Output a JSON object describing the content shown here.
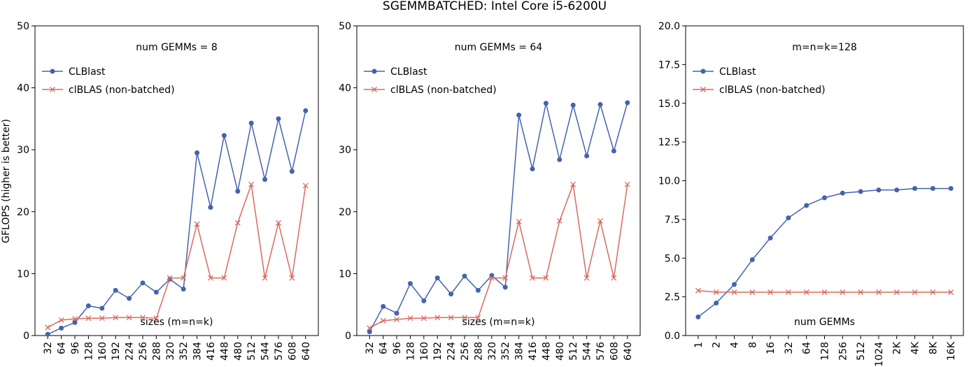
{
  "figure": {
    "title": "SGEMMBATCHED: Intel Core i5-6200U",
    "ylabel": "GFLOPS (higher is better)"
  },
  "colors": {
    "clblast": "#4463ad",
    "clblas": "#d9695f"
  },
  "chart_data": [
    {
      "type": "line",
      "annotation": "num GEMMs = 8",
      "xlabel": "sizes (m=n=k)",
      "categories": [
        "32",
        "64",
        "96",
        "128",
        "160",
        "192",
        "224",
        "256",
        "288",
        "320",
        "352",
        "384",
        "416",
        "448",
        "480",
        "512",
        "544",
        "576",
        "608",
        "640"
      ],
      "ylim": [
        0,
        50
      ],
      "yticks": [
        "0",
        "10",
        "20",
        "30",
        "40",
        "50"
      ],
      "yticks_values": [
        0,
        10,
        20,
        30,
        40,
        50
      ],
      "legend": "upper-left",
      "series": [
        {
          "name": "CLBlast",
          "marker": "circle",
          "values": [
            0.2,
            1.2,
            2.1,
            4.8,
            4.4,
            7.3,
            6.0,
            8.5,
            7.0,
            9.1,
            7.5,
            29.5,
            20.7,
            32.3,
            23.3,
            34.3,
            25.2,
            35.0,
            26.5,
            36.3
          ]
        },
        {
          "name": "clBLAS (non-batched)",
          "marker": "x",
          "values": [
            1.3,
            2.5,
            2.7,
            2.8,
            2.8,
            2.9,
            2.9,
            2.9,
            2.8,
            9.3,
            9.3,
            18.0,
            9.3,
            9.3,
            18.2,
            24.4,
            9.3,
            18.2,
            9.3,
            24.2
          ]
        }
      ]
    },
    {
      "type": "line",
      "annotation": "num GEMMs = 64",
      "xlabel": "sizes (m=n=k)",
      "categories": [
        "32",
        "64",
        "96",
        "128",
        "160",
        "192",
        "224",
        "256",
        "288",
        "320",
        "352",
        "384",
        "416",
        "448",
        "480",
        "512",
        "544",
        "576",
        "608",
        "640"
      ],
      "ylim": [
        0,
        50
      ],
      "yticks": [
        "0",
        "10",
        "20",
        "30",
        "40",
        "50"
      ],
      "yticks_values": [
        0,
        10,
        20,
        30,
        40,
        50
      ],
      "legend": "upper-left",
      "series": [
        {
          "name": "CLBlast",
          "marker": "circle",
          "values": [
            0.6,
            4.7,
            3.6,
            8.4,
            5.6,
            9.3,
            6.7,
            9.6,
            7.3,
            9.7,
            7.8,
            35.6,
            26.9,
            37.5,
            28.4,
            37.2,
            29.0,
            37.3,
            29.8,
            37.6
          ]
        },
        {
          "name": "clBLAS (non-batched)",
          "marker": "x",
          "values": [
            1.2,
            2.4,
            2.6,
            2.8,
            2.8,
            2.9,
            2.9,
            2.9,
            2.9,
            9.3,
            9.3,
            18.4,
            9.3,
            9.3,
            18.5,
            24.4,
            9.3,
            18.5,
            9.3,
            24.4
          ]
        }
      ]
    },
    {
      "type": "line",
      "annotation": "m=n=k=128",
      "xlabel": "num GEMMs",
      "categories": [
        "1",
        "2",
        "4",
        "8",
        "16",
        "32",
        "64",
        "128",
        "256",
        "512",
        "1024",
        "2K",
        "4K",
        "8K",
        "16K"
      ],
      "ylim": [
        0,
        20
      ],
      "yticks": [
        "0.0",
        "2.5",
        "5.0",
        "7.5",
        "10.0",
        "12.5",
        "15.0",
        "17.5",
        "20.0"
      ],
      "yticks_values": [
        0,
        2.5,
        5,
        7.5,
        10,
        12.5,
        15,
        17.5,
        20
      ],
      "legend": "upper-left",
      "series": [
        {
          "name": "CLBlast",
          "marker": "circle",
          "values": [
            1.2,
            2.1,
            3.3,
            4.9,
            6.3,
            7.6,
            8.4,
            8.9,
            9.2,
            9.3,
            9.4,
            9.4,
            9.5,
            9.5,
            9.5
          ]
        },
        {
          "name": "clBLAS (non-batched)",
          "marker": "x",
          "values": [
            2.9,
            2.8,
            2.8,
            2.8,
            2.8,
            2.8,
            2.8,
            2.8,
            2.8,
            2.8,
            2.8,
            2.8,
            2.8,
            2.8,
            2.8
          ]
        }
      ]
    }
  ]
}
